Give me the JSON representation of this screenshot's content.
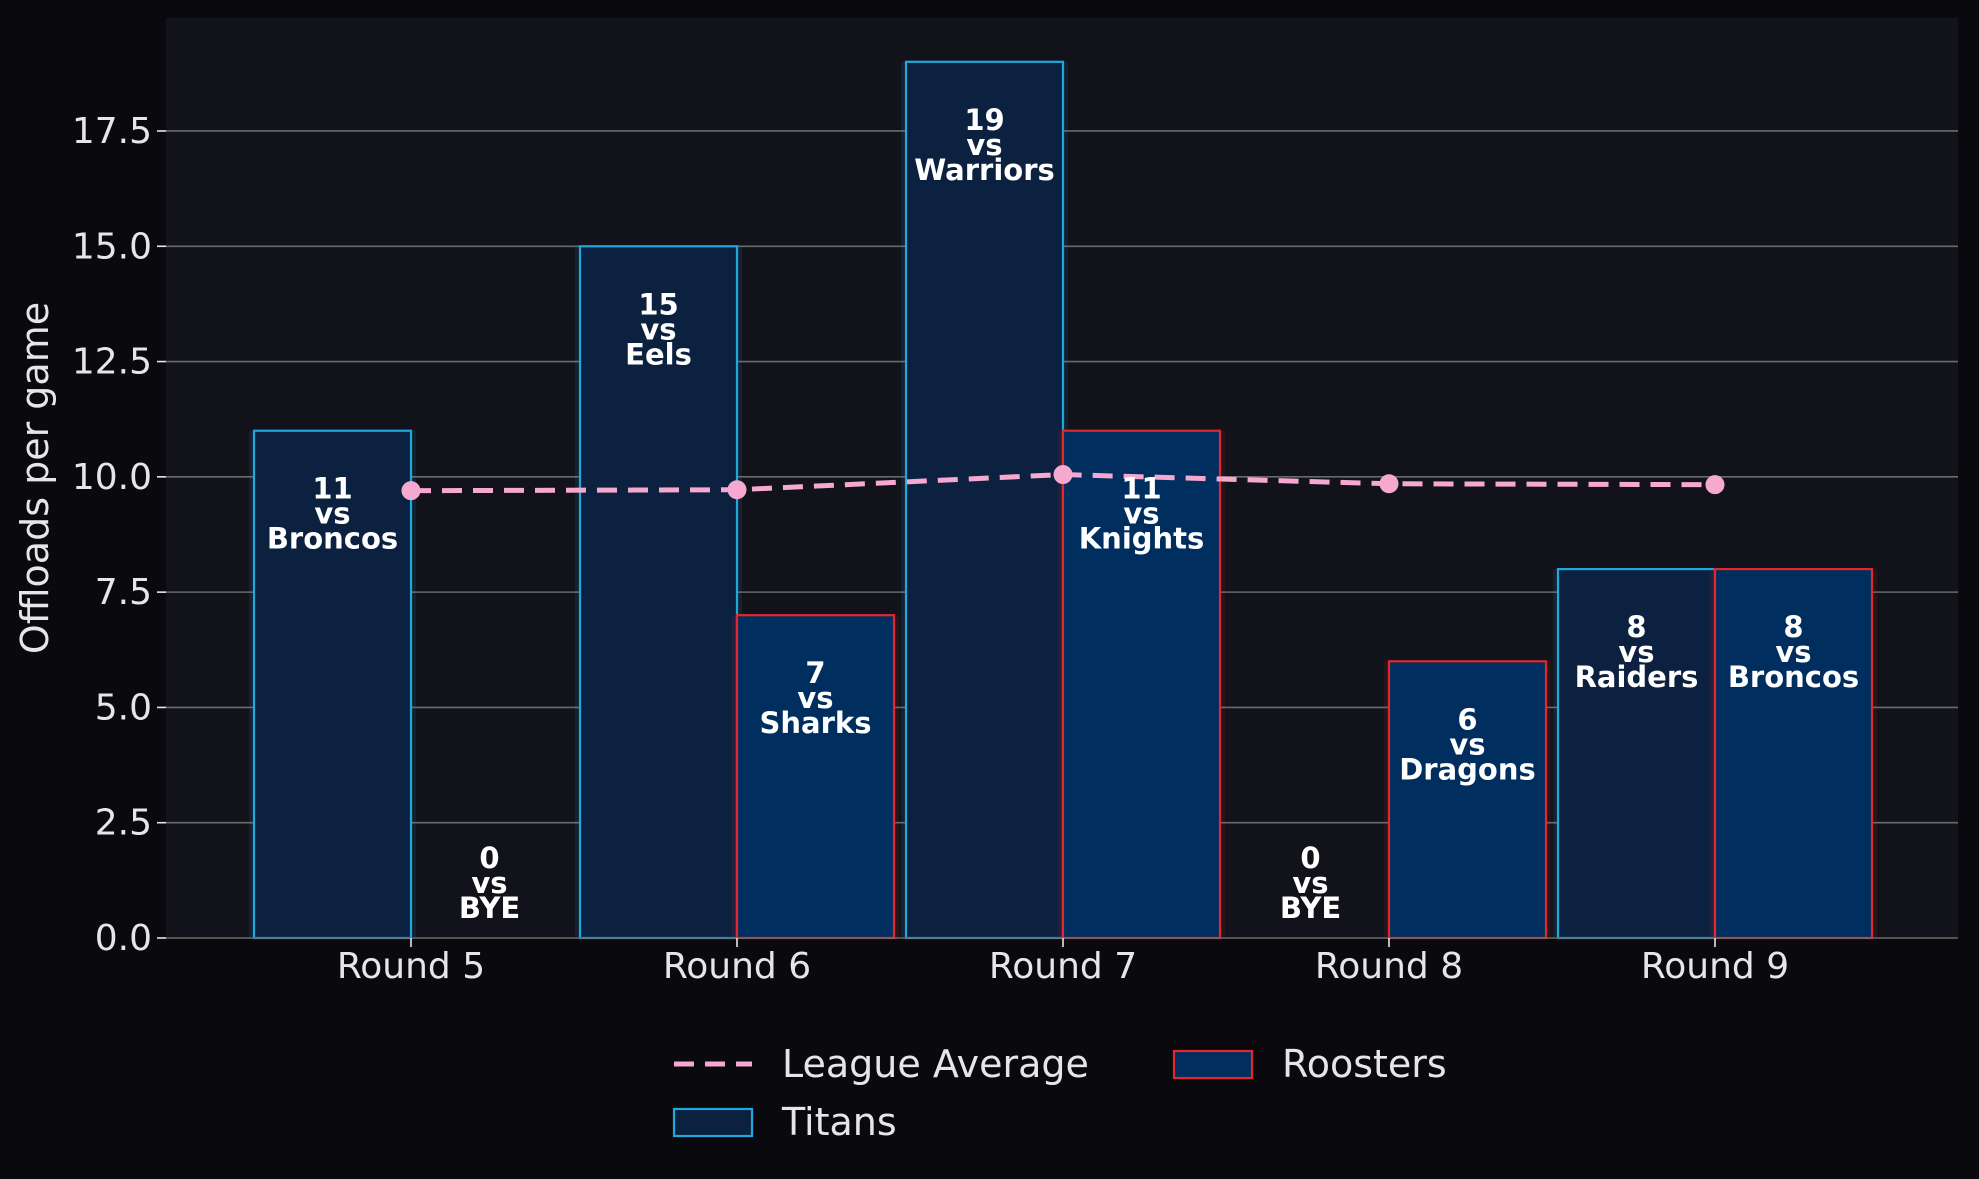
{
  "chart_data": {
    "type": "bar",
    "ylabel": "Offloads per game",
    "xlabel": "",
    "title": "",
    "ylim": [
      0,
      19.95
    ],
    "yticks": [
      0,
      2.5,
      5,
      7.5,
      10,
      12.5,
      15,
      17.5
    ],
    "ytick_labels": [
      "0.0",
      "2.5",
      "5.0",
      "7.5",
      "10.0",
      "12.5",
      "15.0",
      "17.5"
    ],
    "grid": "horizontal",
    "legend_position": "bottom-center",
    "categories": [
      "Round 5",
      "Round 6",
      "Round 7",
      "Round 8",
      "Round 9"
    ],
    "series": [
      {
        "name": "Titans",
        "kind": "bar",
        "fill": "#0c2140",
        "edge": "#1fa8e0",
        "values": [
          11,
          15,
          19,
          0,
          8
        ],
        "labels": [
          [
            "11",
            "vs",
            "Broncos"
          ],
          [
            "15",
            "vs",
            "Eels"
          ],
          [
            "19",
            "vs",
            "Warriors"
          ],
          [
            "0",
            "vs",
            "BYE"
          ],
          [
            "8",
            "vs",
            "Raiders"
          ]
        ]
      },
      {
        "name": "Roosters",
        "kind": "bar",
        "fill": "#002e5e",
        "edge": "#e0282e",
        "values": [
          0,
          7,
          11,
          6,
          8
        ],
        "labels": [
          [
            "0",
            "vs",
            "BYE"
          ],
          [
            "7",
            "vs",
            "Sharks"
          ],
          [
            "11",
            "vs",
            "Knights"
          ],
          [
            "6",
            "vs",
            "Dragons"
          ],
          [
            "8",
            "vs",
            "Broncos"
          ]
        ]
      },
      {
        "name": "League Average",
        "kind": "line",
        "style": "dashed",
        "color": "#f5a8d0",
        "values": [
          9.7,
          9.72,
          10.05,
          9.85,
          9.83
        ]
      }
    ],
    "legend_order": [
      "League Average",
      "Titans",
      "Roosters"
    ]
  },
  "colors": {
    "background": "#0a0a0e",
    "plot_background": "#12131a",
    "grid": "#6a6a6a",
    "text": "#e6e6e6"
  }
}
